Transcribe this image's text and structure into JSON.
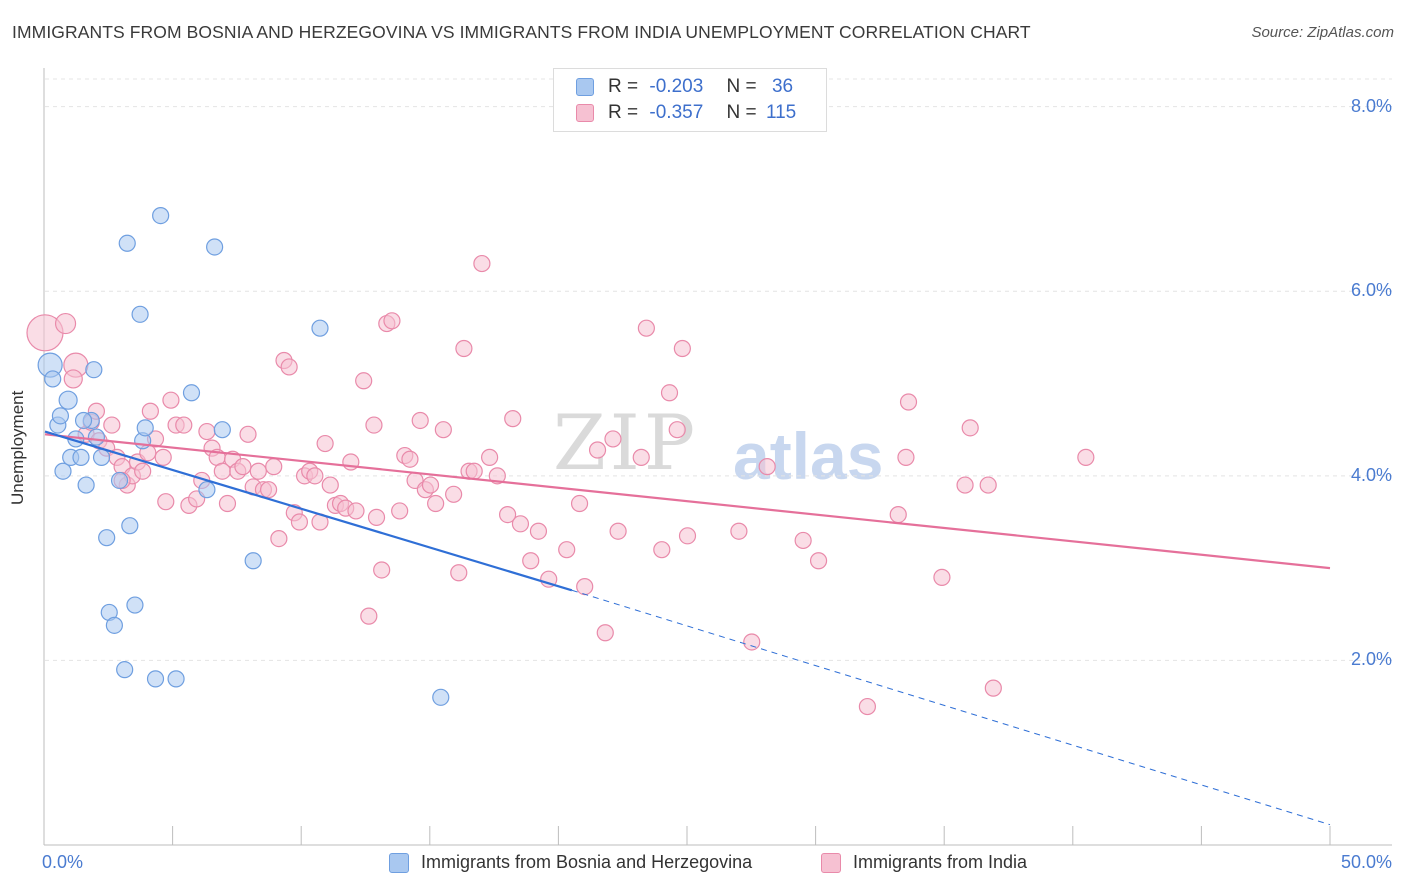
{
  "title": "IMMIGRANTS FROM BOSNIA AND HERZEGOVINA VS IMMIGRANTS FROM INDIA UNEMPLOYMENT CORRELATION CHART",
  "source": "Source: ZipAtlas.com",
  "watermark": {
    "zip": "ZIP",
    "atlas": "atlas"
  },
  "legend": {
    "rows": [
      {
        "r_label": "R =",
        "r_value": "-0.203",
        "n_label": "N =",
        "n_value": "36",
        "color": "#a9c8f0",
        "border": "#6f9fe0"
      },
      {
        "r_label": "R =",
        "r_value": "-0.357",
        "n_label": "N =",
        "n_value": "115",
        "color": "#f6c1d2",
        "border": "#e98aaa"
      }
    ]
  },
  "bottom_legend": [
    {
      "label": "Immigrants from Bosnia and Herzegovina",
      "color": "#a9c8f0",
      "border": "#6f9fe0"
    },
    {
      "label": "Immigrants from India",
      "color": "#f6c1d2",
      "border": "#e98aaa"
    }
  ],
  "chart_data": {
    "type": "scatter",
    "title": "IMMIGRANTS FROM BOSNIA AND HERZEGOVINA VS IMMIGRANTS FROM INDIA UNEMPLOYMENT CORRELATION CHART",
    "xlabel": "",
    "ylabel": "Unemployment",
    "xlim": [
      0,
      50
    ],
    "ylim": [
      0,
      8.3
    ],
    "x_tick_labels": {
      "min": "0.0%",
      "max": "50.0%"
    },
    "y_ticks": [
      {
        "value": 2,
        "label": "2.0%"
      },
      {
        "value": 4,
        "label": "4.0%"
      },
      {
        "value": 6,
        "label": "6.0%"
      },
      {
        "value": 8,
        "label": "8.0%"
      }
    ],
    "grid": true,
    "series": [
      {
        "name": "Immigrants from Bosnia and Herzegovina",
        "color": "#a9c8f0",
        "edge": "#6f9fe0",
        "line_color": "#2f6fd6",
        "trend": {
          "x0": 0,
          "y0": 4.48,
          "x1": 20.5,
          "y1": 2.76,
          "dash_x1": 50,
          "dash_y1": 0.22
        },
        "points": [
          [
            0.2,
            5.2,
            12
          ],
          [
            0.3,
            5.05,
            8
          ],
          [
            0.5,
            4.55,
            8
          ],
          [
            0.6,
            4.65,
            8
          ],
          [
            0.7,
            4.05,
            8
          ],
          [
            0.9,
            4.82,
            9
          ],
          [
            1.0,
            4.2,
            8
          ],
          [
            1.2,
            4.4,
            8
          ],
          [
            1.4,
            4.2,
            8
          ],
          [
            1.6,
            3.9,
            8
          ],
          [
            1.8,
            4.6,
            8
          ],
          [
            1.9,
            5.15,
            8
          ],
          [
            2.0,
            4.42,
            8
          ],
          [
            2.2,
            4.2,
            8
          ],
          [
            2.4,
            3.33,
            8
          ],
          [
            2.5,
            2.52,
            8
          ],
          [
            2.7,
            2.38,
            8
          ],
          [
            2.9,
            3.95,
            8
          ],
          [
            3.1,
            1.9,
            8
          ],
          [
            3.2,
            6.52,
            8
          ],
          [
            3.3,
            3.46,
            8
          ],
          [
            3.5,
            2.6,
            8
          ],
          [
            3.7,
            5.75,
            8
          ],
          [
            3.8,
            4.38,
            8
          ],
          [
            3.9,
            4.52,
            8
          ],
          [
            4.3,
            1.8,
            8
          ],
          [
            4.5,
            6.82,
            8
          ],
          [
            5.1,
            1.8,
            8
          ],
          [
            5.7,
            4.9,
            8
          ],
          [
            6.3,
            3.85,
            8
          ],
          [
            6.6,
            6.48,
            8
          ],
          [
            6.9,
            4.5,
            8
          ],
          [
            8.1,
            3.08,
            8
          ],
          [
            10.7,
            5.6,
            8
          ],
          [
            15.4,
            1.6,
            8
          ],
          [
            1.5,
            4.6,
            8
          ]
        ]
      },
      {
        "name": "Immigrants from India",
        "color": "#f6c1d2",
        "edge": "#e98aaa",
        "line_color": "#e5709a",
        "trend": {
          "x0": 0,
          "y0": 4.45,
          "x1": 50,
          "y1": 3.0
        },
        "points": [
          [
            0.0,
            5.55,
            18
          ],
          [
            0.8,
            5.65,
            10
          ],
          [
            1.2,
            5.2,
            12
          ],
          [
            1.1,
            5.05,
            9
          ],
          [
            1.6,
            4.45,
            8
          ],
          [
            1.8,
            4.58,
            8
          ],
          [
            2.0,
            4.7,
            8
          ],
          [
            2.1,
            4.38,
            8
          ],
          [
            2.4,
            4.3,
            8
          ],
          [
            2.6,
            4.55,
            8
          ],
          [
            2.8,
            4.2,
            8
          ],
          [
            3.0,
            4.1,
            8
          ],
          [
            3.2,
            3.9,
            8
          ],
          [
            3.4,
            4.0,
            8
          ],
          [
            3.6,
            4.15,
            8
          ],
          [
            3.8,
            4.05,
            8
          ],
          [
            4.0,
            4.25,
            8
          ],
          [
            4.1,
            4.7,
            8
          ],
          [
            4.3,
            4.4,
            8
          ],
          [
            4.6,
            4.2,
            8
          ],
          [
            4.7,
            3.72,
            8
          ],
          [
            4.9,
            4.82,
            8
          ],
          [
            5.1,
            4.55,
            8
          ],
          [
            5.4,
            4.55,
            8
          ],
          [
            5.6,
            3.68,
            8
          ],
          [
            5.9,
            3.75,
            8
          ],
          [
            6.1,
            3.95,
            8
          ],
          [
            6.3,
            4.48,
            8
          ],
          [
            6.5,
            4.3,
            8
          ],
          [
            6.7,
            4.2,
            8
          ],
          [
            6.9,
            4.05,
            8
          ],
          [
            7.1,
            3.7,
            8
          ],
          [
            7.3,
            4.18,
            8
          ],
          [
            7.5,
            4.05,
            8
          ],
          [
            7.7,
            4.1,
            8
          ],
          [
            7.9,
            4.45,
            8
          ],
          [
            8.1,
            3.88,
            8
          ],
          [
            8.3,
            4.05,
            8
          ],
          [
            8.5,
            3.85,
            8
          ],
          [
            8.7,
            3.85,
            8
          ],
          [
            8.9,
            4.1,
            8
          ],
          [
            9.1,
            3.32,
            8
          ],
          [
            9.3,
            5.25,
            8
          ],
          [
            9.5,
            5.18,
            8
          ],
          [
            9.7,
            3.6,
            8
          ],
          [
            9.9,
            3.5,
            8
          ],
          [
            10.1,
            4.0,
            8
          ],
          [
            10.3,
            4.05,
            8
          ],
          [
            10.5,
            4.0,
            8
          ],
          [
            10.7,
            3.5,
            8
          ],
          [
            10.9,
            4.35,
            8
          ],
          [
            11.1,
            3.9,
            8
          ],
          [
            11.3,
            3.68,
            8
          ],
          [
            11.5,
            3.7,
            8
          ],
          [
            11.7,
            3.65,
            8
          ],
          [
            11.9,
            4.15,
            8
          ],
          [
            12.1,
            3.62,
            8
          ],
          [
            12.4,
            5.03,
            8
          ],
          [
            12.6,
            2.48,
            8
          ],
          [
            12.8,
            4.55,
            8
          ],
          [
            12.9,
            3.55,
            8
          ],
          [
            13.1,
            2.98,
            8
          ],
          [
            13.3,
            5.65,
            8
          ],
          [
            13.5,
            5.68,
            8
          ],
          [
            13.8,
            3.62,
            8
          ],
          [
            14.0,
            4.22,
            8
          ],
          [
            14.2,
            4.18,
            8
          ],
          [
            14.4,
            3.95,
            8
          ],
          [
            14.6,
            4.6,
            8
          ],
          [
            14.8,
            3.85,
            8
          ],
          [
            15.0,
            3.9,
            8
          ],
          [
            15.2,
            3.7,
            8
          ],
          [
            15.5,
            4.5,
            8
          ],
          [
            15.9,
            3.8,
            8
          ],
          [
            16.1,
            2.95,
            8
          ],
          [
            16.3,
            5.38,
            8
          ],
          [
            16.5,
            4.05,
            8
          ],
          [
            16.7,
            4.05,
            8
          ],
          [
            17.0,
            6.3,
            8
          ],
          [
            17.3,
            4.2,
            8
          ],
          [
            17.6,
            4.0,
            8
          ],
          [
            18.0,
            3.58,
            8
          ],
          [
            18.2,
            4.62,
            8
          ],
          [
            18.5,
            3.48,
            8
          ],
          [
            18.9,
            3.08,
            8
          ],
          [
            19.2,
            3.4,
            8
          ],
          [
            19.6,
            2.88,
            8
          ],
          [
            20.3,
            3.2,
            8
          ],
          [
            20.8,
            3.7,
            8
          ],
          [
            21.0,
            2.8,
            8
          ],
          [
            21.5,
            4.28,
            8
          ],
          [
            21.8,
            2.3,
            8
          ],
          [
            22.1,
            4.4,
            8
          ],
          [
            22.3,
            3.4,
            8
          ],
          [
            23.2,
            4.2,
            8
          ],
          [
            23.4,
            5.6,
            8
          ],
          [
            24.0,
            3.2,
            8
          ],
          [
            24.3,
            4.9,
            8
          ],
          [
            24.6,
            4.5,
            8
          ],
          [
            24.8,
            5.38,
            8
          ],
          [
            25.0,
            3.35,
            8
          ],
          [
            27.0,
            3.4,
            8
          ],
          [
            27.5,
            2.2,
            8
          ],
          [
            28.1,
            4.1,
            8
          ],
          [
            29.5,
            3.3,
            8
          ],
          [
            30.1,
            3.08,
            8
          ],
          [
            32.0,
            1.5,
            8
          ],
          [
            33.2,
            3.58,
            8
          ],
          [
            33.5,
            4.2,
            8
          ],
          [
            33.6,
            4.8,
            8
          ],
          [
            34.9,
            2.9,
            8
          ],
          [
            35.8,
            3.9,
            8
          ],
          [
            36.0,
            4.52,
            8
          ],
          [
            36.7,
            3.9,
            8
          ],
          [
            36.9,
            1.7,
            8
          ],
          [
            40.5,
            4.2,
            8
          ],
          [
            3.0,
            3.95,
            8
          ]
        ]
      }
    ]
  }
}
